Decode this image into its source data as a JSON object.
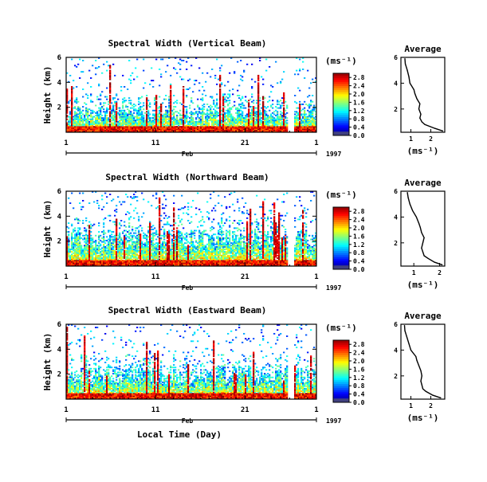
{
  "chart_data": [
    {
      "type": "heatmap",
      "title": "Spectral Width (Vertical Beam)",
      "ylabel": "Height (km)",
      "yticks": [
        "6",
        "4",
        "2"
      ],
      "ylim": [
        0,
        6
      ],
      "xticks": [
        "1",
        "11",
        "21",
        "1"
      ],
      "xlim_days": [
        1,
        29
      ],
      "month_label": "Feb",
      "year_label": "1997",
      "colorbar": {
        "unit": "(ms⁻¹)",
        "ticks": [
          "2.8",
          "2.4",
          "2.0",
          "1.6",
          "1.2",
          "0.8",
          "0.4",
          "0.0"
        ],
        "range": [
          0,
          3.0
        ]
      },
      "average_profile": {
        "title": "Average",
        "xlabel": "(ms⁻¹)",
        "xticks": [
          "1",
          "2"
        ],
        "xlim": [
          0.5,
          2.7
        ],
        "yticks": [
          "6",
          "4",
          "2"
        ],
        "ylim": [
          0.2,
          6
        ],
        "height_km": [
          0.3,
          0.5,
          0.8,
          1.0,
          1.3,
          1.6,
          2.0,
          2.4,
          2.8,
          3.2,
          3.5,
          4.0,
          4.5,
          5.0,
          5.5,
          5.9
        ],
        "width_ms": [
          2.6,
          2.2,
          1.7,
          1.55,
          1.45,
          1.5,
          1.4,
          1.45,
          1.3,
          1.2,
          1.15,
          0.95,
          0.9,
          0.82,
          0.72,
          0.7
        ]
      }
    },
    {
      "type": "heatmap",
      "title": "Spectral Width (Northward Beam)",
      "ylabel": "Height (km)",
      "yticks": [
        "6",
        "4",
        "2"
      ],
      "ylim": [
        0,
        6
      ],
      "xticks": [
        "1",
        "11",
        "21",
        "1"
      ],
      "xlim_days": [
        1,
        29
      ],
      "month_label": "Feb",
      "year_label": "1997",
      "colorbar": {
        "unit": "(ms⁻¹)",
        "ticks": [
          "2.8",
          "2.4",
          "2.0",
          "1.6",
          "1.2",
          "0.8",
          "0.4",
          "0.0"
        ],
        "range": [
          0,
          3.0
        ]
      },
      "average_profile": {
        "title": "Average",
        "xlabel": "(ms⁻¹)",
        "xticks": [
          "1",
          "2"
        ],
        "xlim": [
          0.5,
          2.2
        ],
        "yticks": [
          "6",
          "4",
          "2"
        ],
        "ylim": [
          0.2,
          6
        ],
        "height_km": [
          0.3,
          0.5,
          0.8,
          1.0,
          1.3,
          1.6,
          2.0,
          2.4,
          2.8,
          3.2,
          3.5,
          4.0,
          4.5,
          5.0,
          5.5,
          5.9
        ],
        "width_ms": [
          2.1,
          1.8,
          1.55,
          1.4,
          1.35,
          1.3,
          1.35,
          1.4,
          1.3,
          1.25,
          1.2,
          1.1,
          0.95,
          0.85,
          0.78,
          0.75
        ]
      }
    },
    {
      "type": "heatmap",
      "title": "Spectral Width (Eastward Beam)",
      "ylabel": "Height (km)",
      "yticks": [
        "6",
        "4",
        "2"
      ],
      "ylim": [
        0,
        6
      ],
      "xticks": [
        "1",
        "11",
        "21",
        "1"
      ],
      "xlim_days": [
        1,
        29
      ],
      "month_label": "Feb",
      "year_label": "1997",
      "xlabel": "Local Time (Day)",
      "colorbar": {
        "unit": "(ms⁻¹)",
        "ticks": [
          "2.8",
          "2.4",
          "2.0",
          "1.6",
          "1.2",
          "0.8",
          "0.4",
          "0.0"
        ],
        "range": [
          0,
          3.0
        ]
      },
      "average_profile": {
        "title": "Average",
        "xlabel": "(ms⁻¹)",
        "xticks": [
          "1",
          "2"
        ],
        "xlim": [
          0.5,
          2.7
        ],
        "yticks": [
          "6",
          "4",
          "2"
        ],
        "ylim": [
          0.2,
          6
        ],
        "height_km": [
          0.3,
          0.5,
          0.8,
          1.0,
          1.3,
          1.6,
          2.0,
          2.4,
          2.8,
          3.2,
          3.5,
          4.0,
          4.5,
          5.0,
          5.5,
          5.9
        ],
        "width_ms": [
          2.5,
          2.1,
          1.75,
          1.6,
          1.55,
          1.5,
          1.55,
          1.5,
          1.4,
          1.3,
          1.25,
          1.0,
          0.9,
          0.8,
          0.7,
          0.68
        ]
      }
    }
  ]
}
